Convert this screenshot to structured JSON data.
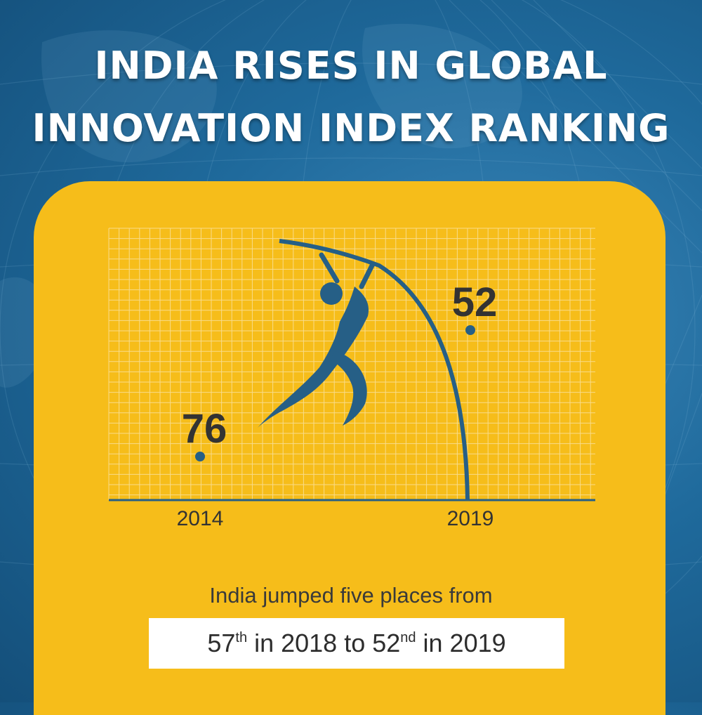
{
  "title": {
    "line1": "INDIA RISES IN GLOBAL",
    "line2": "INNOVATION INDEX RANKING"
  },
  "colors": {
    "background": "#1f6a9c",
    "card": "#f6bd1a",
    "grid": "#f9dc8a",
    "ink": "#265f86",
    "label": "#333333"
  },
  "icons": {
    "figure": "pole-vault-athlete-icon"
  },
  "chart_data": {
    "type": "scatter",
    "title": "INDIA RISES IN GLOBAL INNOVATION INDEX RANKING",
    "x": [
      "2014",
      "2019"
    ],
    "points": [
      {
        "x": "2014",
        "rank": 76,
        "label": "76"
      },
      {
        "x": "2019",
        "rank": 52,
        "label": "52"
      }
    ],
    "y_axis": "rank (inverted, higher position = better rank)",
    "grid": true
  },
  "caption": {
    "line1": "India jumped five places from",
    "part1": "57",
    "sup1": "th",
    "part2": " in 2018 to 52",
    "sup2": "nd",
    "part3": " in 2019"
  }
}
